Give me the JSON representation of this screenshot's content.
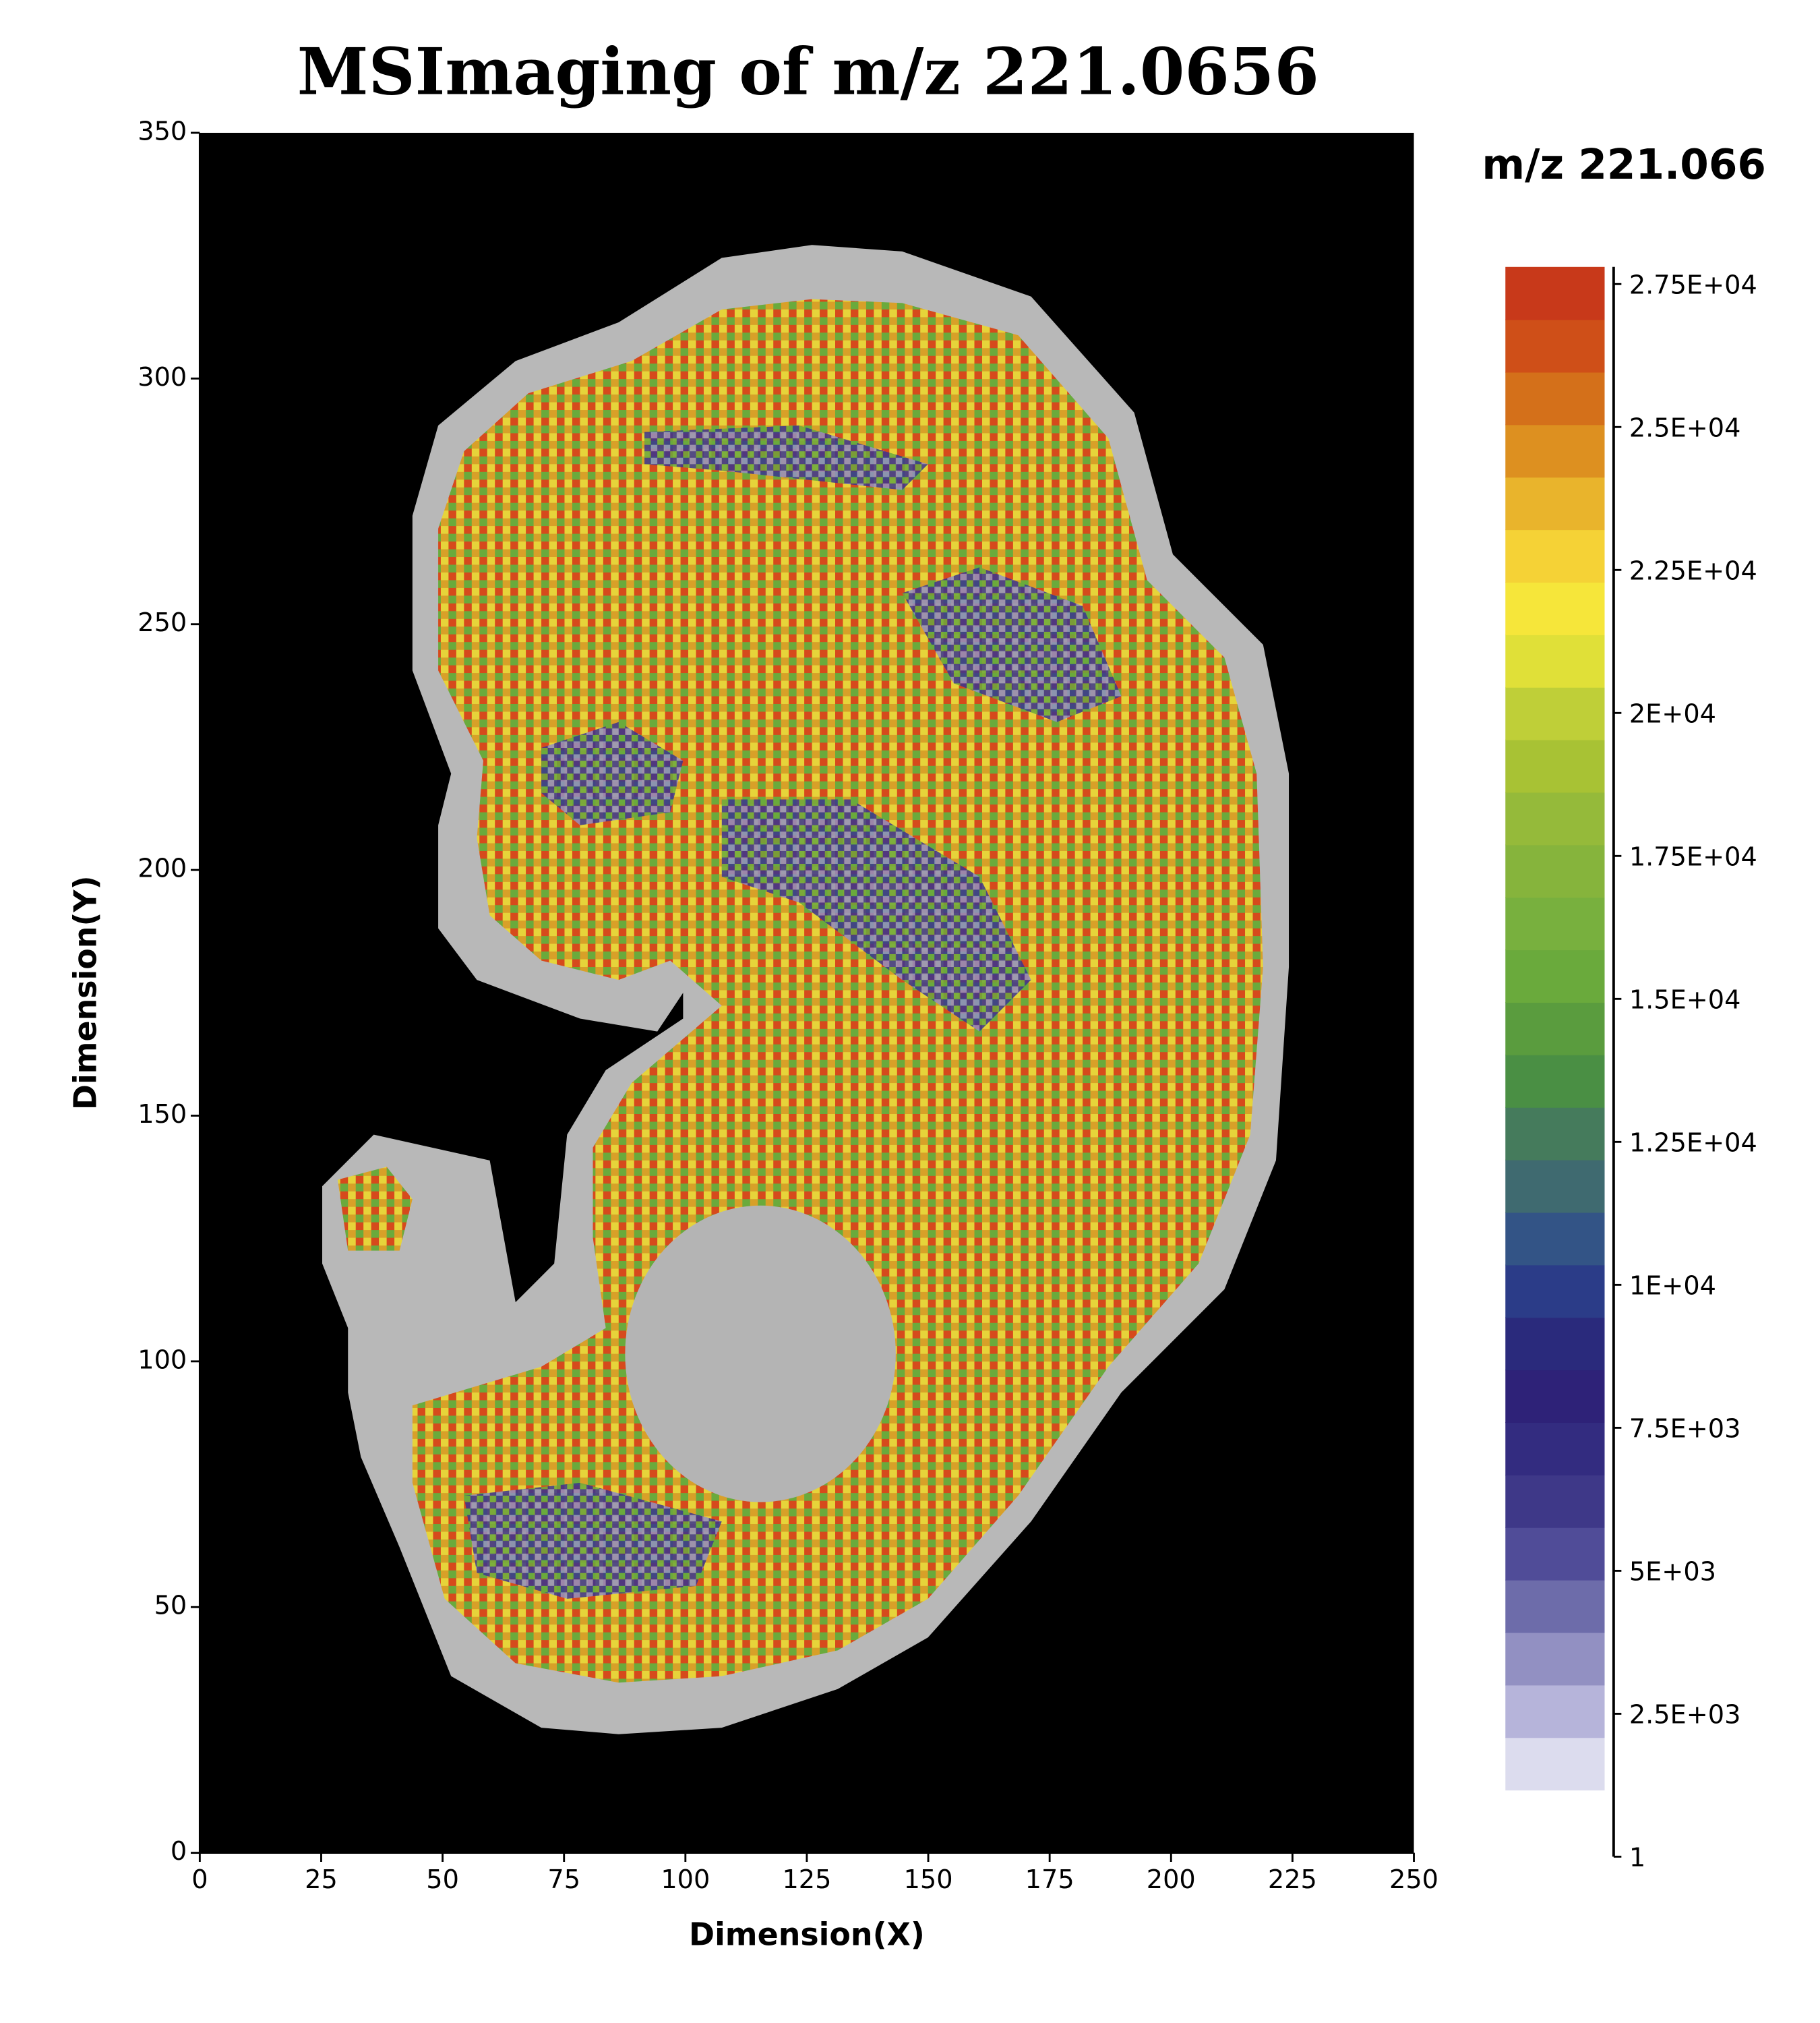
{
  "chart_data": {
    "type": "heatmap",
    "title": "MSImaging of m/z 221.0656",
    "xlabel": "Dimension(X)",
    "ylabel": "Dimension(Y)",
    "xlim": [
      0,
      250
    ],
    "ylim": [
      0,
      350
    ],
    "xticks": [
      0,
      25,
      50,
      75,
      100,
      125,
      150,
      175,
      200,
      225,
      250
    ],
    "yticks": [
      0,
      50,
      100,
      150,
      200,
      250,
      300,
      350
    ],
    "background": "#000000",
    "colorbar": {
      "title": "m/z 221.066",
      "clim": [
        1,
        27800
      ],
      "band_range": [
        1170,
        27800
      ],
      "ticks": [
        1,
        {
          "value": 2500,
          "label": "2.5E+03"
        },
        {
          "value": 5000,
          "label": "5E+03"
        },
        {
          "value": 7500,
          "label": "7.5E+03"
        },
        {
          "value": 10000,
          "label": "1E+04"
        },
        {
          "value": 12500,
          "label": "1.25E+04"
        },
        {
          "value": 15000,
          "label": "1.5E+04"
        },
        {
          "value": 17500,
          "label": "1.75E+04"
        },
        {
          "value": 20000,
          "label": "2E+04"
        },
        {
          "value": 22500,
          "label": "2.25E+04"
        },
        {
          "value": 25000,
          "label": "2.5E+04"
        },
        {
          "value": 27500,
          "label": "2.75E+04"
        }
      ],
      "colors": [
        "#dcdcee",
        "#b6b4da",
        "#9290c2",
        "#6d6caa",
        "#504c98",
        "#3e3888",
        "#332c80",
        "#2e2278",
        "#2a2a7c",
        "#2b3c88",
        "#335486",
        "#3f6a70",
        "#457b5c",
        "#4a8f44",
        "#5a9c3e",
        "#6aaa3c",
        "#78b03e",
        "#86b43c",
        "#95ba3a",
        "#a8c234",
        "#bfcf38",
        "#e0e038",
        "#f6e63a",
        "#f5d236",
        "#e9b42c",
        "#dd9020",
        "#d4701a",
        "#cf4f18",
        "#c8391a"
      ]
    }
  }
}
